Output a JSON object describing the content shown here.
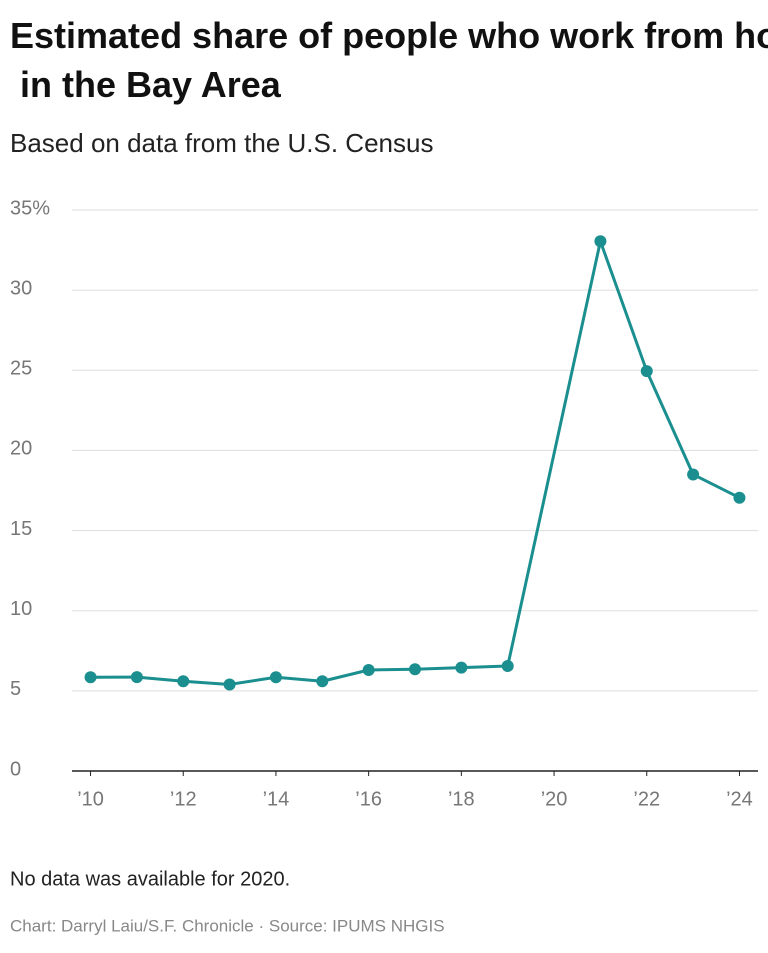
{
  "chart_data": {
    "type": "line",
    "title": "Estimated share of people who work from home in the Bay Area",
    "subtitle": "Based on data from the U.S. Census",
    "note": "No data was available for 2020.",
    "source": "Chart: Darryl Laiu/S.F. Chronicle · Source: IPUMS NHGIS",
    "x": [
      2010,
      2011,
      2012,
      2013,
      2014,
      2015,
      2016,
      2017,
      2018,
      2019,
      2021,
      2022,
      2023,
      2024
    ],
    "series": [
      {
        "color": "#1b8f8f",
        "values": [
          5.85,
          5.86,
          5.6,
          5.4,
          5.85,
          5.6,
          6.3,
          6.35,
          6.45,
          6.55,
          33.05,
          24.95,
          18.5,
          17.05
        ]
      }
    ],
    "xlim": [
      2009.6,
      2024.4
    ],
    "xticks": [
      {
        "value": 2010,
        "label": "’10"
      },
      {
        "value": 2012,
        "label": "’12"
      },
      {
        "value": 2014,
        "label": "’14"
      },
      {
        "value": 2016,
        "label": "’16"
      },
      {
        "value": 2018,
        "label": "’18"
      },
      {
        "value": 2020,
        "label": "’20"
      },
      {
        "value": 2022,
        "label": "’22"
      },
      {
        "value": 2024,
        "label": "’24"
      }
    ],
    "ylim": [
      0,
      35
    ],
    "yticks": [
      0,
      5,
      10,
      15,
      20,
      25,
      30,
      {
        "value": 35,
        "label": "35%"
      }
    ],
    "grid": true
  }
}
